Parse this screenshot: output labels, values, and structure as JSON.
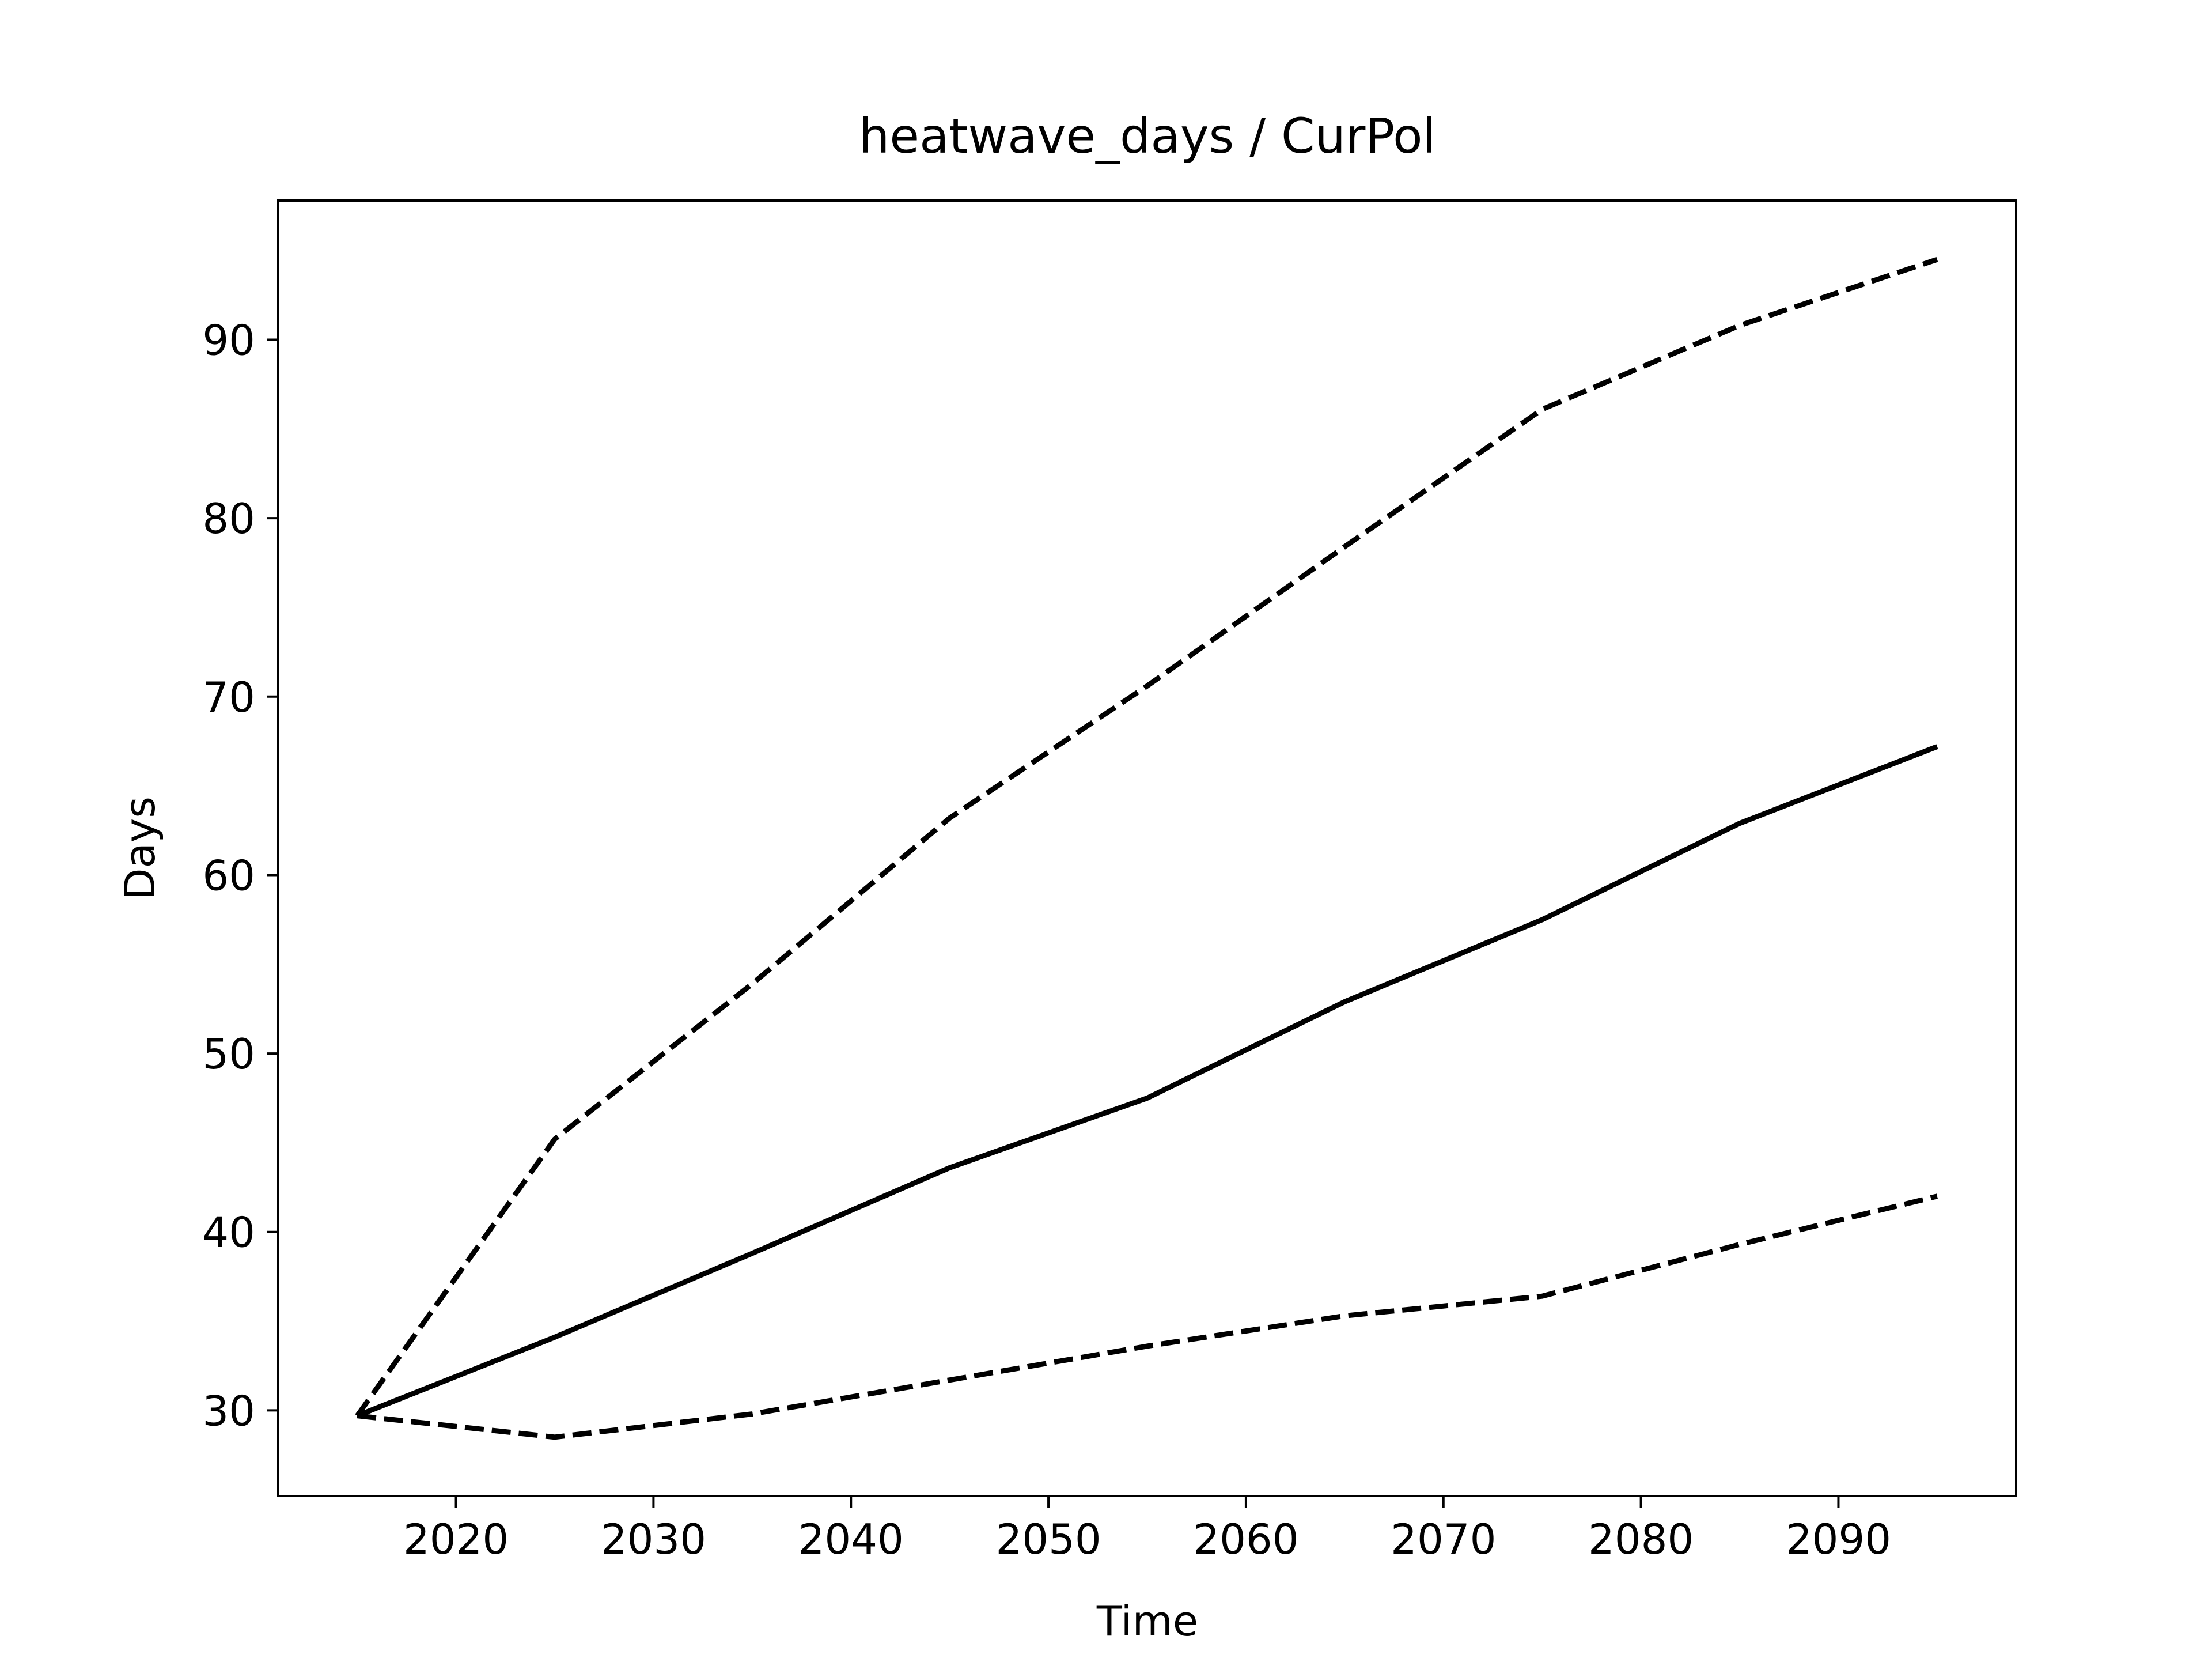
{
  "chart_data": {
    "type": "line",
    "title": "heatwave_days / CurPol",
    "xlabel": "Time",
    "ylabel": "Days",
    "xlim": [
      2011,
      2099
    ],
    "ylim": [
      25.2,
      97.8
    ],
    "xticks": [
      2020,
      2030,
      2040,
      2050,
      2060,
      2070,
      2080,
      2090
    ],
    "yticks": [
      30,
      40,
      50,
      60,
      70,
      80,
      90
    ],
    "grid": false,
    "legend": "none",
    "x": [
      2015,
      2025,
      2035,
      2045,
      2055,
      2065,
      2075,
      2085,
      2095
    ],
    "series": [
      {
        "style": "solid",
        "color": "#000000",
        "values": [
          29.7,
          34.1,
          38.8,
          43.6,
          47.5,
          52.9,
          57.5,
          62.9,
          67.2
        ]
      },
      {
        "style": "dashed",
        "color": "#000000",
        "values": [
          29.7,
          45.2,
          53.9,
          63.2,
          70.6,
          78.4,
          86.1,
          90.8,
          94.5
        ]
      },
      {
        "style": "dashed",
        "color": "#000000",
        "values": [
          29.7,
          28.5,
          29.8,
          31.7,
          33.6,
          35.3,
          36.4,
          39.3,
          42.0
        ]
      }
    ]
  }
}
